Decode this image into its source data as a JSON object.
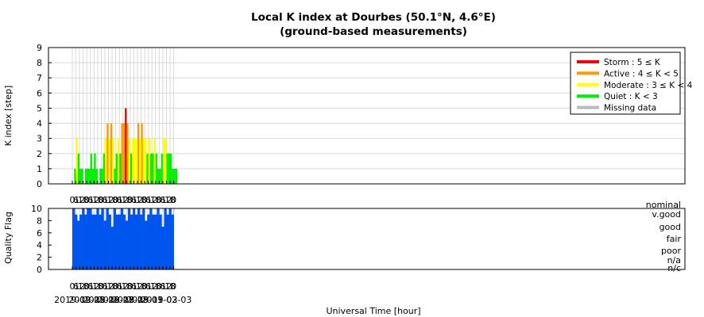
{
  "chart_data": [
    {
      "type": "bar",
      "title": "Local K index at Dourbes (50.1°N, 4.6°E)",
      "subtitle": "(ground-based measurements)",
      "ylabel": "K index [step]",
      "ylim": [
        0,
        9
      ],
      "yticks": [
        "0",
        "1",
        "2",
        "3",
        "4",
        "5",
        "6",
        "7",
        "8",
        "9"
      ],
      "x_tick_labels": [
        "0",
        "6",
        "12",
        "18",
        "0",
        "6",
        "12",
        "18",
        "0",
        "6",
        "12",
        "18",
        "0",
        "6",
        "12",
        "18",
        "0",
        "6",
        "12",
        "18",
        "0",
        "6",
        "12",
        "18",
        "0",
        "6",
        "12",
        "18",
        "0"
      ],
      "grid": true,
      "legend_position": "top-right",
      "legend": [
        {
          "label": "Storm : 5 ≤ K",
          "color": "#ee0000"
        },
        {
          "label": "Active : 4 ≤ K < 5",
          "color": "#ff9900"
        },
        {
          "label": "Moderate : 3 ≤ K < 4",
          "color": "#ffff00"
        },
        {
          "label": "Quiet : K < 3",
          "color": "#00ee00"
        },
        {
          "label": "Missing data",
          "color": "#bbbbbb"
        }
      ],
      "x_unit": "hours since 2019-02-25 00:00 UT",
      "bar_width_hours": 3,
      "x": [
        0,
        3,
        6,
        9,
        12,
        15,
        18,
        21,
        24,
        27,
        30,
        33,
        36,
        39,
        42,
        45,
        48,
        51,
        54,
        57,
        60,
        63,
        66,
        69,
        72,
        75,
        78,
        81,
        84,
        87,
        90,
        93,
        96,
        99,
        102,
        105,
        108,
        111,
        114,
        117,
        120,
        123,
        126,
        129,
        132,
        135,
        138,
        141,
        144,
        147,
        150,
        153,
        156,
        159,
        162,
        165,
        168,
        171
      ],
      "values": [
        0,
        1,
        3,
        2,
        1,
        1,
        0,
        1,
        1,
        1,
        2,
        1,
        2,
        1,
        0,
        1,
        1,
        2,
        3,
        4,
        3,
        4,
        3,
        1,
        2,
        3,
        2,
        4,
        4,
        5,
        4,
        3,
        2,
        3,
        3,
        3,
        4,
        3,
        4,
        3,
        3,
        2,
        3,
        2,
        2,
        3,
        2,
        1,
        1,
        2,
        3,
        3,
        2,
        2,
        2,
        1,
        1,
        1
      ]
    },
    {
      "type": "area",
      "ylabel": "Quality Flag",
      "ylim": [
        0,
        10
      ],
      "yticks": [
        "0",
        "2",
        "4",
        "6",
        "8",
        "10"
      ],
      "x_tick_labels": [
        "0",
        "6",
        "12",
        "18",
        "0",
        "6",
        "12",
        "18",
        "0",
        "6",
        "12",
        "18",
        "0",
        "6",
        "12",
        "18",
        "0",
        "6",
        "12",
        "18",
        "0",
        "6",
        "12",
        "18",
        "0",
        "6",
        "12",
        "18",
        "0"
      ],
      "date_labels": [
        "2019-02-25",
        "2019-02-26",
        "2019-02-27",
        "2019-02-28",
        "2019-03-01",
        "2019-03-02",
        "2019-03-03"
      ],
      "xlabel": "Universal Time [hour]",
      "quality_levels": [
        "nominal",
        "v.good",
        "good",
        "fair",
        "poor",
        "n/a",
        "n/c"
      ],
      "fill_color": "#0055ee",
      "x": [
        0,
        4,
        8,
        12,
        16,
        20,
        24,
        28,
        32,
        36,
        40,
        44,
        48,
        52,
        56,
        60,
        64,
        68,
        72,
        76,
        80,
        84,
        88,
        92,
        96,
        100,
        104,
        108,
        112,
        116,
        120,
        124,
        128,
        132,
        136,
        140,
        144,
        148,
        152,
        156,
        160,
        164,
        168
      ],
      "values": [
        10,
        9,
        8,
        9,
        10,
        9,
        10,
        10,
        9,
        9,
        10,
        9,
        10,
        8,
        10,
        9,
        7,
        10,
        9,
        9,
        10,
        9,
        8,
        10,
        9,
        10,
        9,
        10,
        9,
        10,
        8,
        9,
        10,
        9,
        9,
        10,
        9,
        7,
        10,
        9,
        10,
        9,
        10
      ]
    }
  ]
}
